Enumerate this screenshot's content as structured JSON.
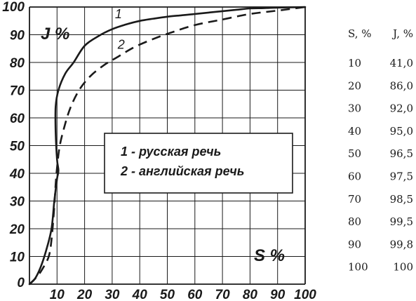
{
  "chart_data": {
    "type": "line",
    "xlabel": "S %",
    "ylabel": "J %",
    "xlim": [
      0,
      100
    ],
    "ylim": [
      0,
      100
    ],
    "x_ticks": [
      "10",
      "20",
      "30",
      "40",
      "50",
      "60",
      "70",
      "80",
      "90",
      "100"
    ],
    "y_ticks": [
      "0",
      "10",
      "20",
      "30",
      "40",
      "50",
      "60",
      "70",
      "80",
      "90",
      "100"
    ],
    "grid": true,
    "series": [
      {
        "name": "1 - русская речь",
        "marker": "1",
        "style": "solid",
        "points": [
          [
            0,
            0
          ],
          [
            2,
            2
          ],
          [
            4,
            6
          ],
          [
            6,
            12
          ],
          [
            8,
            20
          ],
          [
            9,
            30
          ],
          [
            10,
            38
          ],
          [
            10.5,
            41
          ],
          [
            10,
            45
          ],
          [
            9.5,
            55
          ],
          [
            9.5,
            64
          ],
          [
            10.5,
            70
          ],
          [
            13,
            76
          ],
          [
            16,
            80
          ],
          [
            20,
            86
          ],
          [
            25,
            89.5
          ],
          [
            30,
            92
          ],
          [
            35,
            93.7
          ],
          [
            40,
            95
          ],
          [
            45,
            95.8
          ],
          [
            50,
            96.5
          ],
          [
            55,
            97
          ],
          [
            60,
            97.5
          ],
          [
            65,
            98
          ],
          [
            70,
            98.5
          ],
          [
            75,
            99
          ],
          [
            80,
            99.5
          ],
          [
            85,
            99.6
          ],
          [
            90,
            99.8
          ],
          [
            95,
            99.9
          ],
          [
            100,
            100
          ]
        ]
      },
      {
        "name": "2 - английская речь",
        "marker": "2",
        "style": "dashed",
        "points": [
          [
            0,
            0
          ],
          [
            3,
            3
          ],
          [
            5,
            6
          ],
          [
            7,
            10
          ],
          [
            8,
            16
          ],
          [
            9,
            28
          ],
          [
            9.5,
            36
          ],
          [
            10,
            42
          ],
          [
            11,
            50
          ],
          [
            13,
            58
          ],
          [
            15,
            64
          ],
          [
            18,
            70
          ],
          [
            22,
            75
          ],
          [
            27,
            79
          ],
          [
            32,
            82
          ],
          [
            38,
            85.5
          ],
          [
            45,
            88.5
          ],
          [
            52,
            91
          ],
          [
            60,
            93.5
          ],
          [
            70,
            95.5
          ],
          [
            80,
            97.5
          ],
          [
            90,
            98.7
          ],
          [
            100,
            100
          ]
        ]
      }
    ],
    "legend": {
      "placement": "center",
      "items": [
        "1 - русская речь",
        "2 - английская речь"
      ]
    },
    "table": {
      "headers": [
        "S, %",
        "J, %"
      ],
      "rows": [
        [
          "10",
          "41,0"
        ],
        [
          "20",
          "86,0"
        ],
        [
          "30",
          "92,0"
        ],
        [
          "40",
          "95,0"
        ],
        [
          "50",
          "96,5"
        ],
        [
          "60",
          "97,5"
        ],
        [
          "70",
          "98,5"
        ],
        [
          "80",
          "99,5"
        ],
        [
          "90",
          "99,8"
        ],
        [
          "100",
          "100"
        ]
      ]
    }
  }
}
